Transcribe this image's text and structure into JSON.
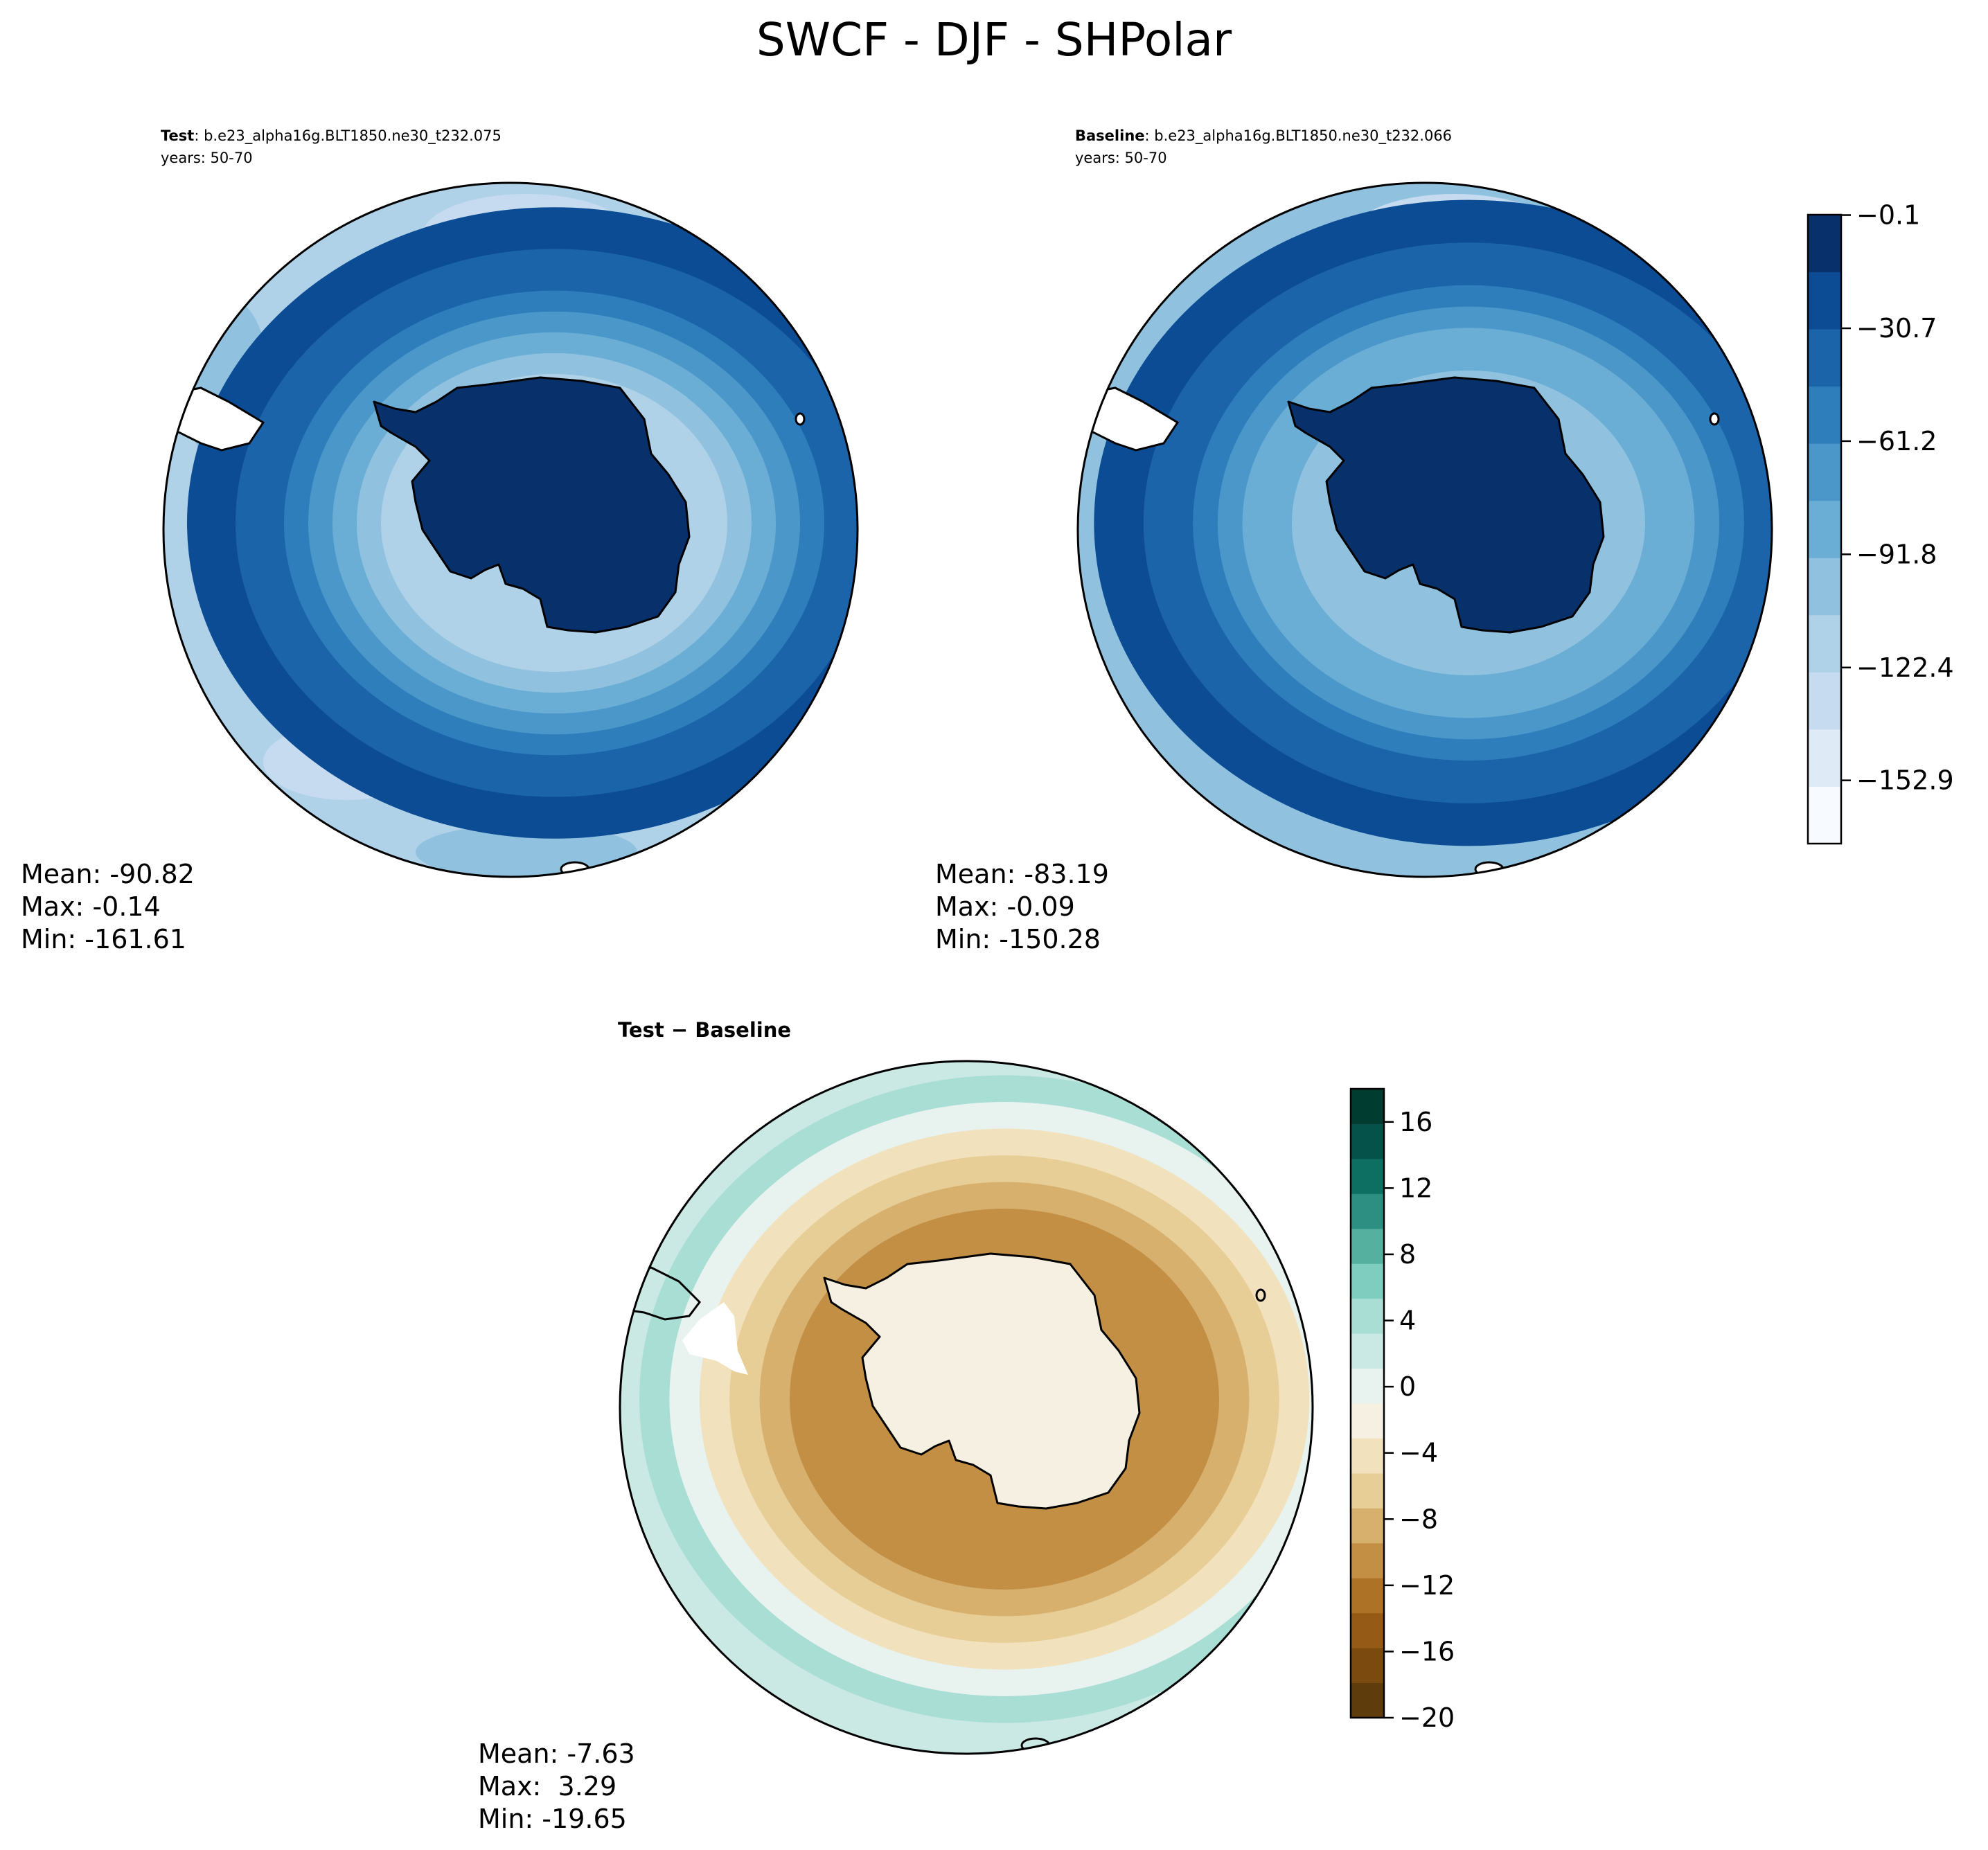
{
  "title": "SWCF - DJF - SHPolar",
  "chart_data": [
    {
      "type": "heatmap",
      "projection": "south-polar-stereographic",
      "colormap": "Blues",
      "panel_label_bold": "Test",
      "panel_label_case": ": b.e23_alpha16g.BLT1850.ne30_t232.075",
      "years": "years: 50-70",
      "stats": {
        "mean": "Mean: -90.82",
        "max": "Max: -0.14",
        "min": "Min: -161.61"
      },
      "ocean_level_index": 3,
      "ring_levels": [
        9,
        9,
        8,
        8,
        7,
        6,
        5,
        4,
        3
      ]
    },
    {
      "type": "heatmap",
      "projection": "south-polar-stereographic",
      "colormap": "Blues",
      "panel_label_bold": "Baseline",
      "panel_label_case": ": b.e23_alpha16g.BLT1850.ne30_t232.066",
      "years": "years: 50-70",
      "stats": {
        "mean": "Mean: -83.19",
        "max": "Max: -0.09",
        "min": "Min: -150.28"
      },
      "ocean_level_index": 4,
      "ring_levels": [
        9,
        9,
        8,
        8,
        7,
        6,
        5,
        5,
        4
      ]
    },
    {
      "type": "heatmap",
      "projection": "south-polar-stereographic",
      "colormap": "BrBG",
      "panel_label": "Test − Baseline",
      "stats": {
        "mean": "Mean: -7.63",
        "max": "Max:  3.29",
        "min": "Min: -19.65"
      },
      "ocean_level_index": 4,
      "ring_levels": [
        10,
        10,
        10,
        11,
        9,
        7,
        6,
        5,
        4
      ]
    }
  ],
  "colorbars": {
    "swcf": {
      "colors": [
        "#f7fbff",
        "#deebf7",
        "#c6dbef",
        "#b0d2e8",
        "#90c2e0",
        "#6aaed6",
        "#4b97c9",
        "#2f7ebc",
        "#1c64a9",
        "#0b4c94",
        "#08306b"
      ],
      "tick_labels": [
        "−152.9",
        "−122.4",
        "−91.8",
        "−61.2",
        "−30.7",
        "−0.1"
      ],
      "tick_values": [
        -152.9,
        -122.4,
        -91.8,
        -61.2,
        -30.7,
        -0.1
      ],
      "range": [
        -170,
        0
      ]
    },
    "diff": {
      "colors": [
        "#5e3c0b",
        "#7a4a0e",
        "#955b16",
        "#ae7226",
        "#c38f45",
        "#d7b06e",
        "#e7cd96",
        "#f1e2bd",
        "#f5f0e1",
        "#e8f2ef",
        "#cbe9e4",
        "#a8ded4",
        "#7fcdbf",
        "#55b0a0",
        "#2d8f81",
        "#0d6e62",
        "#04524a",
        "#003c30"
      ],
      "tick_labels": [
        "−20",
        "−16",
        "−12",
        "−8",
        "−4",
        "0",
        "4",
        "8",
        "12",
        "16"
      ],
      "tick_values": [
        -20,
        -16,
        -12,
        -8,
        -4,
        0,
        4,
        8,
        12,
        16
      ],
      "range": [
        -20,
        18
      ]
    }
  }
}
